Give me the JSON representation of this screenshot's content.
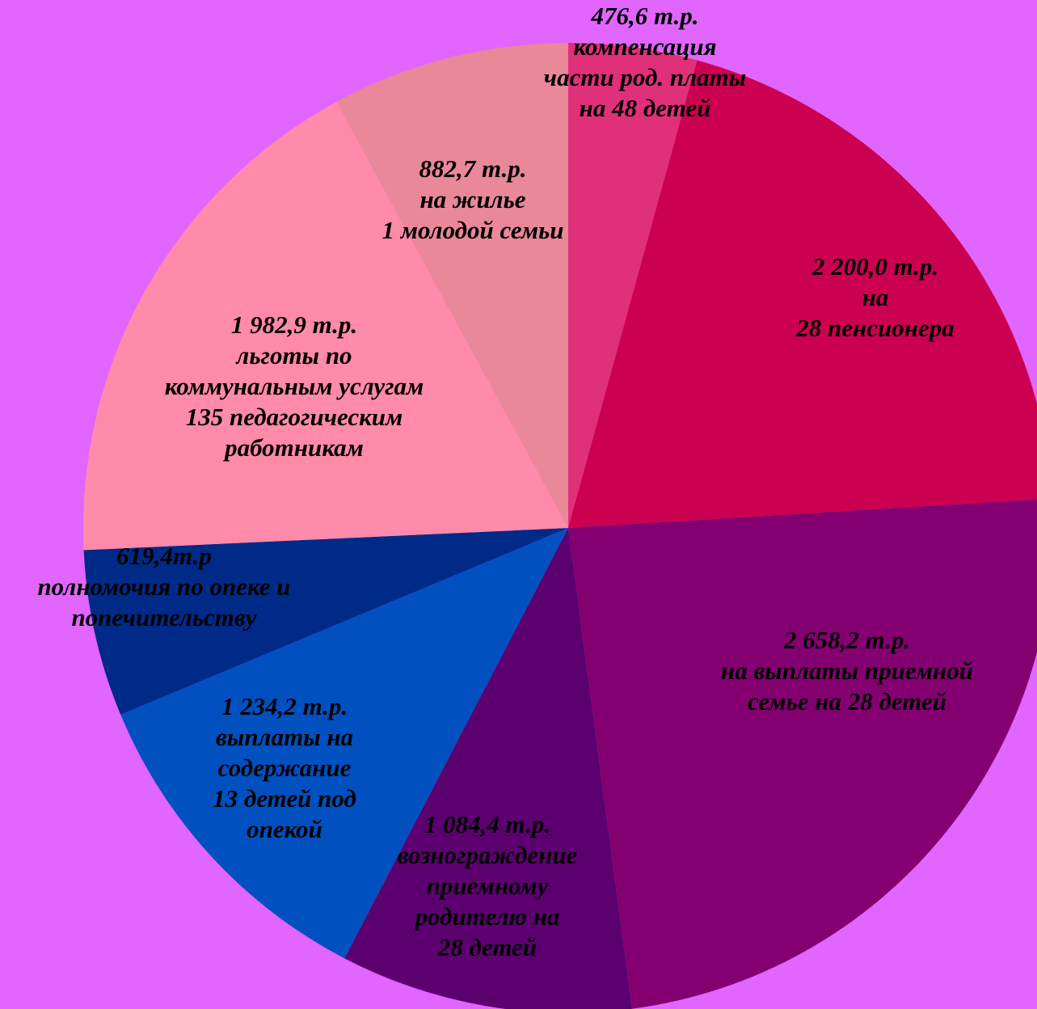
{
  "chart_data": {
    "type": "pie",
    "title": "",
    "unit": "т.р.",
    "background_color": "#e066ff",
    "slices": [
      {
        "value": 476.6,
        "color": "#e0307a",
        "label_lines": [
          "476,6 т.р.",
          "компенсация",
          "части род. платы",
          "на 48 детей"
        ]
      },
      {
        "value": 2200.0,
        "color": "#cc0050",
        "label_lines": [
          "2 200,0 т.р.",
          "на",
          "28 пенсионера"
        ]
      },
      {
        "value": 2658.2,
        "color": "#840070",
        "label_lines": [
          "2 658,2 т.р.",
          "на выплаты приемной",
          "семье на  28 детей"
        ]
      },
      {
        "value": 1084.4,
        "color": "#5c0070",
        "label_lines": [
          "1 084,4 т.р.",
          "вознограждение",
          "приемному",
          "родителю на",
          "28 детей"
        ]
      },
      {
        "value": 1234.2,
        "color": "#0050c0",
        "label_lines": [
          "1 234,2 т.р.",
          "выплаты  на",
          "содержание",
          "13 детей под",
          "опекой"
        ]
      },
      {
        "value": 619.4,
        "color": "#002a88",
        "label_lines": [
          "619,4т.р",
          "полномочия по опеке и",
          "попечительству"
        ]
      },
      {
        "value": 1982.9,
        "color": "#ff8aaa",
        "label_lines": [
          "1 982,9 т.р.",
          "льготы  по",
          "коммунальным услугам",
          "135 педагогическим",
          "работникам"
        ]
      },
      {
        "value": 882.7,
        "color": "#e88898",
        "label_lines": [
          "882,7 т.р.",
          "на жилье",
          "1  молодой семьи"
        ]
      }
    ]
  }
}
